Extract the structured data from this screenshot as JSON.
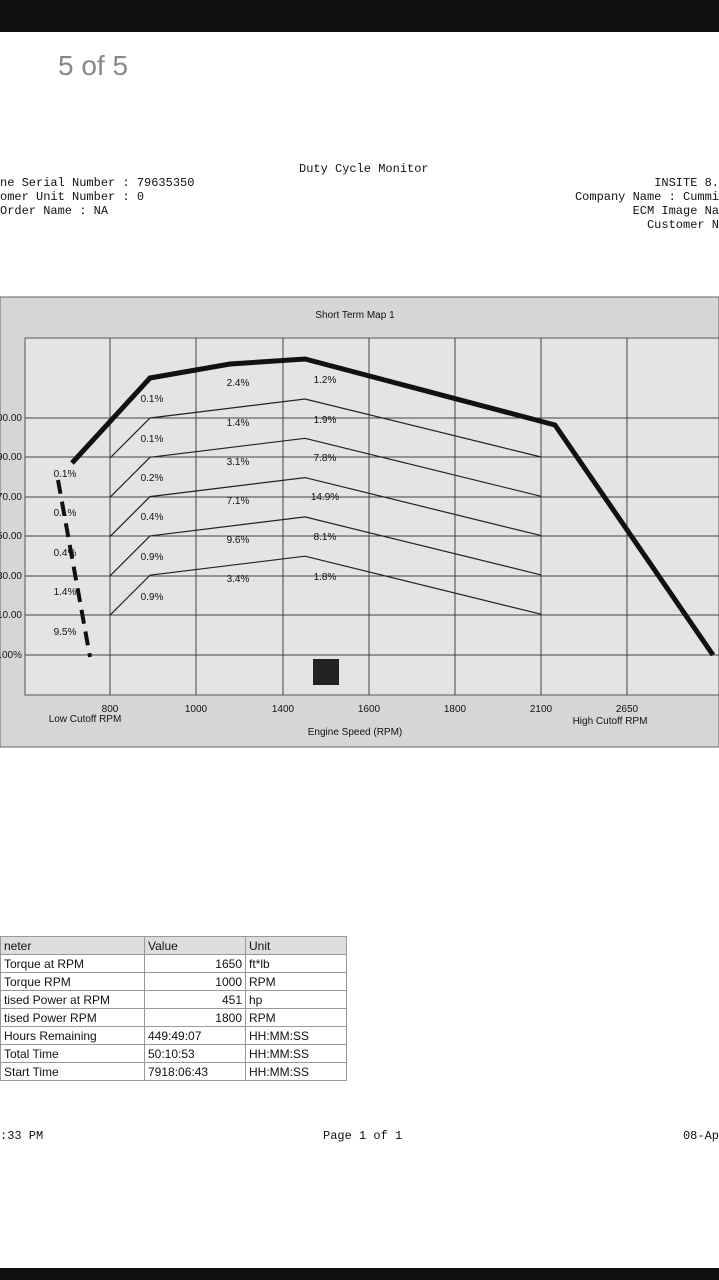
{
  "viewer": {
    "counter": "5 of 5"
  },
  "document": {
    "title": "Duty Cycle Monitor",
    "left_header": [
      "ne Serial Number : 79635350",
      "omer Unit Number : 0",
      " Order Name : NA"
    ],
    "right_header": [
      "INSITE 8.",
      "Company Name : Cummi",
      "ECM Image Na",
      "Customer N"
    ],
    "chart": {
      "title": "Short Term Map 1",
      "y_labels": [
        "00.00",
        "90.00",
        "70.00",
        "50.00",
        "30.00",
        "10.00",
        ".00%"
      ],
      "x_labels": [
        "800",
        "1000",
        "1400",
        "1600",
        "1800",
        "2100",
        "2650"
      ],
      "low_cutoff": "Low Cutoff RPM",
      "high_cutoff": "High Cutoff RPM",
      "x_axis_label": "Engine Speed (RPM)",
      "cells": [
        [
          "0.1%",
          "0.1%",
          "0.4%",
          "1.4%",
          "9.5%"
        ],
        [
          "0.1%",
          "0.1%",
          "0.2%",
          "0.4%",
          "0.9%",
          "0.9%"
        ],
        [
          "2.4%",
          "1.4%",
          "3.1%",
          "7.1%",
          "9.6%",
          "3.4%"
        ],
        [
          "1.2%",
          "1.9%",
          "7.8%",
          "14.9%",
          "8.1%",
          "1.8%"
        ]
      ]
    },
    "table": {
      "header": [
        "neter",
        "Value",
        "Unit"
      ],
      "rows": [
        [
          "Torque at RPM",
          "1650",
          "ft*lb"
        ],
        [
          "Torque RPM",
          "1000",
          "RPM"
        ],
        [
          "tised Power at RPM",
          "451",
          "hp"
        ],
        [
          "tised Power RPM",
          "1800",
          "RPM"
        ],
        [
          "Hours Remaining",
          "449:49:07",
          "HH:MM:SS"
        ],
        [
          "Total Time",
          "50:10:53",
          "HH:MM:SS"
        ],
        [
          "Start Time",
          "7918:06:43",
          "HH:MM:SS"
        ]
      ]
    },
    "footer": {
      "left": ":33 PM",
      "center": "Page 1 of 1",
      "right": "08-Ap"
    }
  }
}
